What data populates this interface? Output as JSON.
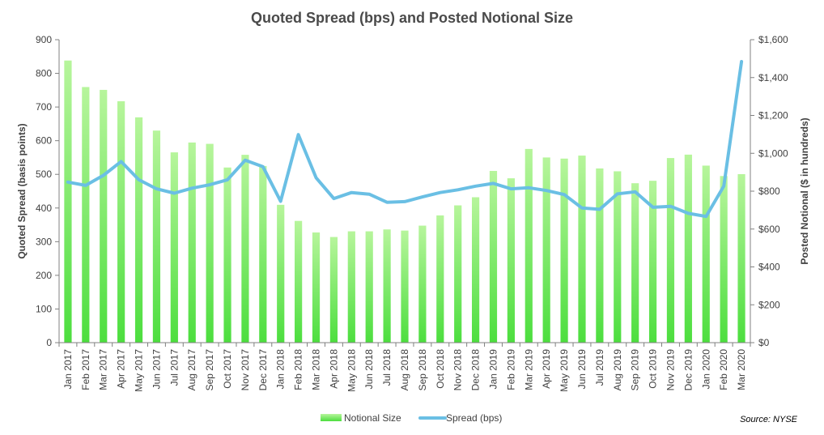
{
  "chart_data": {
    "type": "bar",
    "title": "Quoted Spread (bps) and Posted Notional Size",
    "ylabel": "Quoted Spread (basis points)",
    "y2label": "Posted Notional ($ in hundreds)",
    "ylim": [
      0,
      900
    ],
    "y2lim": [
      0,
      1600
    ],
    "yticks": [
      "0",
      "100",
      "200",
      "300",
      "400",
      "500",
      "600",
      "700",
      "800",
      "900"
    ],
    "y2ticks": [
      "$0",
      "$200",
      "$400",
      "$600",
      "$800",
      "$1,000",
      "$1,200",
      "$1,400",
      "$1,600"
    ],
    "categories": [
      "Jan 2017",
      "Feb 2017",
      "Mar 2017",
      "Apr 2017",
      "May 2017",
      "Jun 2017",
      "Jul 2017",
      "Aug 2017",
      "Sep 2017",
      "Oct 2017",
      "Nov 2017",
      "Dec 2017",
      "Jan 2018",
      "Feb 2018",
      "Mar 2018",
      "Apr 2018",
      "May 2018",
      "Jun 2018",
      "Jul 2018",
      "Aug 2018",
      "Sep 2018",
      "Oct 2018",
      "Nov 2018",
      "Dec 2018",
      "Jan 2019",
      "Feb 2019",
      "Mar 2019",
      "Apr 2019",
      "May 2019",
      "Jun 2019",
      "Jul 2019",
      "Aug 2019",
      "Sep 2019",
      "Oct 2019",
      "Nov 2019",
      "Dec 2019",
      "Jan 2020",
      "Feb 2020",
      "Mar 2020"
    ],
    "series": [
      {
        "name": "Notional Size",
        "kind": "bar",
        "axis": "right",
        "color": "#6ee65a",
        "values": [
          1490,
          1350,
          1335,
          1275,
          1190,
          1120,
          1005,
          1057,
          1050,
          925,
          992,
          933,
          728,
          643,
          582,
          558,
          588,
          588,
          598,
          592,
          618,
          672,
          725,
          768,
          907,
          868,
          1023,
          978,
          972,
          988,
          920,
          905,
          842,
          855,
          975,
          993,
          935,
          880,
          890
        ]
      },
      {
        "name": "Spread (bps)",
        "kind": "line",
        "axis": "left",
        "color": "#6abfe4",
        "values": [
          477,
          467,
          497,
          538,
          484,
          457,
          444,
          459,
          469,
          484,
          542,
          523,
          420,
          618,
          490,
          428,
          446,
          441,
          417,
          419,
          433,
          446,
          454,
          465,
          473,
          457,
          460,
          452,
          440,
          400,
          396,
          442,
          448,
          402,
          405,
          384,
          375,
          465,
          835
        ]
      }
    ],
    "legend_position": "bottom",
    "grid": false,
    "source": "Source: NYSE"
  }
}
